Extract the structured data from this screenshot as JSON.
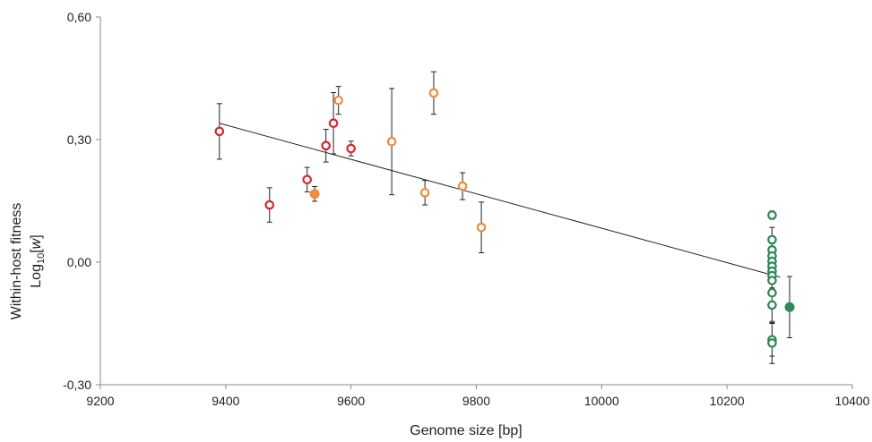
{
  "chart_data": {
    "type": "scatter",
    "title": "",
    "xlabel": "Genome size [bp]",
    "ylabel": {
      "line1": "Within-host fitness",
      "line2_prefix": "Log",
      "line2_sub": "10",
      "line2_open": "[",
      "line2_var": "w",
      "line2_close": "]"
    },
    "xlim": [
      9200,
      10400
    ],
    "ylim": [
      -0.3,
      0.6
    ],
    "x_ticks": [
      9200,
      9400,
      9600,
      9800,
      10000,
      10200,
      10400
    ],
    "x_tick_labels": [
      "9200",
      "9400",
      "9600",
      "9800",
      "10000",
      "10200",
      "10400"
    ],
    "y_ticks": [
      -0.3,
      0,
      0.3,
      0.6
    ],
    "y_tick_labels": [
      "-0,30",
      "0,00",
      "0,30",
      "0,60"
    ],
    "grid": false,
    "trendline": {
      "x_start": 9390,
      "y_start": 0.34,
      "x_end": 10285,
      "y_end": -0.037
    },
    "colors": {
      "red": "#d9262b",
      "orange": "#f08c3a",
      "green": "#2e8b57",
      "axis": "#888888",
      "error": "#222222",
      "trend": "#222222"
    },
    "series": [
      {
        "color": "red",
        "marker": "open",
        "points": [
          {
            "x": 9390,
            "y": 0.32,
            "err": 0.068
          },
          {
            "x": 9470,
            "y": 0.14,
            "err": 0.042
          },
          {
            "x": 9530,
            "y": 0.202,
            "err": 0.03
          },
          {
            "x": 9560,
            "y": 0.285,
            "err": 0.04
          },
          {
            "x": 9572,
            "y": 0.34,
            "err": 0.075
          },
          {
            "x": 9600,
            "y": 0.278,
            "err": 0.018
          }
        ]
      },
      {
        "color": "orange",
        "marker": "open",
        "points": [
          {
            "x": 9580,
            "y": 0.396,
            "err": 0.034
          },
          {
            "x": 9665,
            "y": 0.295,
            "err": 0.13
          },
          {
            "x": 9718,
            "y": 0.17,
            "err": 0.03
          },
          {
            "x": 9732,
            "y": 0.414,
            "err": 0.052
          },
          {
            "x": 9778,
            "y": 0.186,
            "err": 0.033
          },
          {
            "x": 9808,
            "y": 0.085,
            "err": 0.062
          }
        ]
      },
      {
        "color": "orange",
        "marker": "filled",
        "points": [
          {
            "x": 9542,
            "y": 0.167,
            "err": 0.018
          }
        ]
      },
      {
        "color": "green",
        "marker": "open",
        "points": [
          {
            "x": 10272,
            "y": 0.115,
            "err": 0.01
          },
          {
            "x": 10272,
            "y": 0.055,
            "err": 0.03
          },
          {
            "x": 10272,
            "y": 0.03,
            "err": 0.03
          },
          {
            "x": 10272,
            "y": 0.015,
            "err": 0.03
          },
          {
            "x": 10272,
            "y": 0.002,
            "err": 0.03
          },
          {
            "x": 10272,
            "y": -0.01,
            "err": 0.03
          },
          {
            "x": 10272,
            "y": -0.022,
            "err": 0.03
          },
          {
            "x": 10272,
            "y": -0.033,
            "err": 0.03
          },
          {
            "x": 10272,
            "y": -0.045,
            "err": 0.03
          },
          {
            "x": 10272,
            "y": -0.075,
            "err": 0.03
          },
          {
            "x": 10272,
            "y": -0.105,
            "err": 0.04
          },
          {
            "x": 10272,
            "y": -0.19,
            "err": 0.04
          },
          {
            "x": 10272,
            "y": -0.198,
            "err": 0.05
          }
        ]
      },
      {
        "color": "green",
        "marker": "filled",
        "points": [
          {
            "x": 10300,
            "y": -0.11,
            "err": 0.075
          }
        ]
      }
    ]
  }
}
